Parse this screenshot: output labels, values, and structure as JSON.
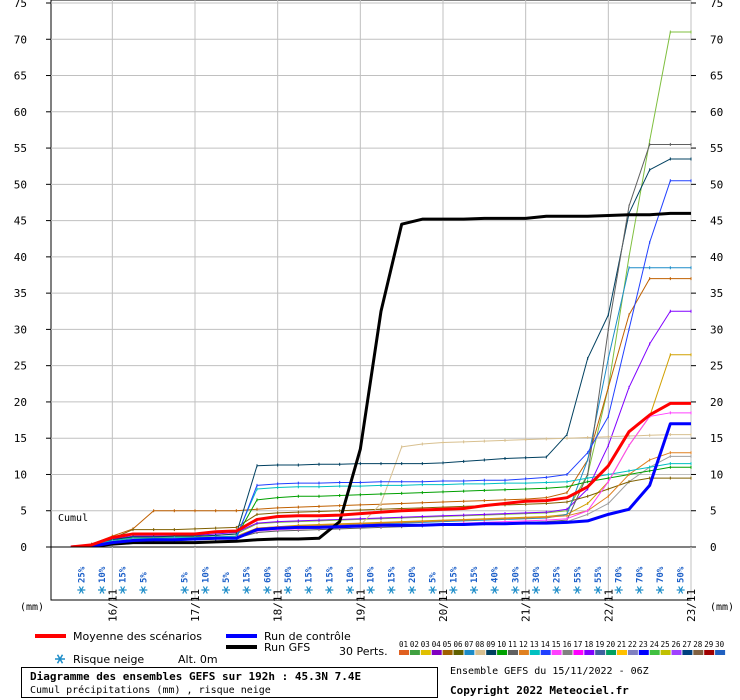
{
  "chart_data": {
    "type": "line",
    "title": "Diagramme des ensembles GEFS sur 192h : 45.3N 7.4E",
    "subtitle": "Cumul précipitations (mm) , risque neige",
    "source": "Ensemble GEFS du 15/11/2022 - 06Z",
    "copyright": "Copyright 2022 Meteociel.fr",
    "y_unit_left": "(mm)",
    "y_unit_right": "(mm)",
    "cumul_label": "Cumul",
    "ylim": [
      0,
      75
    ],
    "y_ticks": [
      0,
      5,
      10,
      15,
      20,
      25,
      30,
      35,
      40,
      45,
      50,
      55,
      60,
      65,
      70,
      75
    ],
    "x_day_labels": [
      "16/11",
      "17/11",
      "18/11",
      "19/11",
      "20/11",
      "21/11",
      "22/11",
      "23/11"
    ],
    "x": [
      0,
      0.25,
      0.5,
      0.75,
      1,
      1.25,
      1.5,
      1.75,
      2,
      2.25,
      2.5,
      2.75,
      3,
      3.25,
      3.5,
      3.75,
      4,
      4.25,
      4.5,
      4.75,
      5,
      5.25,
      5.5,
      5.75,
      6,
      6.25,
      6.5,
      6.75,
      7,
      7.25,
      7.5
    ],
    "snow_risk": [
      "25%",
      "10%",
      "15%",
      "5%",
      "",
      "5%",
      "10%",
      "5%",
      "15%",
      "60%",
      "50%",
      "15%",
      "15%",
      "10%",
      "10%",
      "15%",
      "20%",
      "5%",
      "15%",
      "15%",
      "40%",
      "30%",
      "30%",
      "25%",
      "55%",
      "55%",
      "70%",
      "70%",
      "70%",
      "50%"
    ],
    "series": [
      {
        "name": "Moyenne des scénarios",
        "color": "#ff0000",
        "width": 3,
        "values": [
          0,
          0.3,
          1.3,
          1.8,
          1.8,
          1.8,
          1.8,
          2.1,
          2.2,
          3.8,
          4.2,
          4.3,
          4.3,
          4.4,
          4.6,
          4.8,
          5,
          5.1,
          5.2,
          5.3,
          5.7,
          6,
          6.3,
          6.4,
          6.8,
          8.3,
          11.2,
          15.9,
          18.2,
          19.8,
          19.8
        ]
      },
      {
        "name": "Run de contrôle",
        "color": "#0000ff",
        "width": 3,
        "values": [
          0,
          0.1,
          0.6,
          0.9,
          1,
          1,
          1.1,
          1.2,
          1.2,
          2.4,
          2.6,
          2.7,
          2.7,
          2.8,
          2.9,
          3,
          3,
          3,
          3.1,
          3.1,
          3.2,
          3.2,
          3.3,
          3.3,
          3.4,
          3.6,
          4.5,
          5.2,
          8.5,
          17,
          17
        ]
      },
      {
        "name": "Run GFS",
        "color": "#000000",
        "width": 3,
        "values": [
          0,
          0.1,
          0.4,
          0.6,
          0.6,
          0.6,
          0.6,
          0.7,
          0.8,
          1,
          1.1,
          1.1,
          1.2,
          3.5,
          13.5,
          32.5,
          44.5,
          45.2,
          45.2,
          45.2,
          45.3,
          45.3,
          45.3,
          45.6,
          45.6,
          45.6,
          45.7,
          45.8,
          45.8,
          46,
          46
        ]
      },
      {
        "name": "01",
        "color": "#a0a0a0",
        "width": 1,
        "values": [
          0,
          0.2,
          0.6,
          0.9,
          1,
          1,
          1.1,
          1.2,
          1.3,
          2.2,
          2.4,
          2.5,
          2.6,
          2.7,
          2.8,
          2.9,
          3,
          3,
          3.1,
          3.1,
          3.2,
          3.3,
          3.3,
          3.4,
          3.5,
          4.5,
          6,
          9,
          11,
          12.5,
          12.5
        ]
      },
      {
        "name": "02",
        "color": "#7fbf3f",
        "width": 1,
        "values": [
          0,
          0.3,
          1,
          1.3,
          1.3,
          1.4,
          1.4,
          1.6,
          1.8,
          3.2,
          3.4,
          3.5,
          3.6,
          3.7,
          3.8,
          3.9,
          4,
          4.1,
          4.2,
          4.3,
          4.4,
          4.5,
          4.6,
          4.7,
          5,
          10,
          22,
          40,
          56,
          71,
          71
        ]
      },
      {
        "name": "03",
        "color": "#d0a000",
        "width": 1,
        "values": [
          0,
          0.2,
          0.8,
          1.1,
          1.2,
          1.2,
          1.3,
          1.4,
          1.5,
          2.6,
          2.8,
          3,
          3.1,
          3.2,
          3.3,
          3.4,
          3.5,
          3.6,
          3.7,
          3.8,
          3.9,
          4,
          4.1,
          4.2,
          4.5,
          6,
          9,
          14,
          18,
          26.5,
          26.5
        ]
      },
      {
        "name": "04",
        "color": "#8000ff",
        "width": 1,
        "values": [
          0,
          0.3,
          1.1,
          1.5,
          1.5,
          1.5,
          1.6,
          1.8,
          2,
          3.3,
          3.5,
          3.6,
          3.7,
          3.8,
          3.9,
          4,
          4.1,
          4.2,
          4.3,
          4.4,
          4.5,
          4.6,
          4.7,
          4.8,
          5.2,
          8,
          14,
          22,
          28,
          32.5,
          32.5
        ]
      },
      {
        "name": "05",
        "color": "#c06000",
        "width": 1,
        "values": [
          0,
          0.4,
          1.5,
          2.5,
          5,
          5,
          5,
          5,
          5,
          5.2,
          5.4,
          5.5,
          5.6,
          5.7,
          5.8,
          5.9,
          6,
          6.1,
          6.2,
          6.3,
          6.4,
          6.5,
          6.6,
          6.8,
          7.5,
          12,
          22,
          32,
          37,
          37,
          37
        ]
      },
      {
        "name": "06",
        "color": "#806000",
        "width": 1,
        "values": [
          0,
          0.3,
          1.2,
          2.4,
          2.4,
          2.4,
          2.5,
          2.6,
          2.7,
          4.5,
          4.7,
          4.8,
          4.9,
          5,
          5.1,
          5.2,
          5.3,
          5.4,
          5.5,
          5.6,
          5.7,
          5.8,
          5.9,
          6,
          6.2,
          7,
          8,
          9,
          9.5,
          9.5,
          9.5
        ]
      },
      {
        "name": "07",
        "color": "#1c8cc8",
        "width": 1,
        "values": [
          0,
          0.2,
          0.7,
          1,
          1,
          1.1,
          1.1,
          1.2,
          1.3,
          2.5,
          2.7,
          2.8,
          2.9,
          3,
          3.1,
          3.2,
          3.3,
          3.4,
          3.5,
          3.6,
          3.7,
          3.8,
          3.9,
          4,
          4.5,
          12,
          26,
          38.5,
          38.5,
          38.5,
          38.5
        ]
      },
      {
        "name": "08",
        "color": "#d8c090",
        "width": 1,
        "values": [
          0,
          0.2,
          0.8,
          1.1,
          1.2,
          1.2,
          1.3,
          1.4,
          1.5,
          2.4,
          2.6,
          2.7,
          2.8,
          2.9,
          3,
          6,
          13.8,
          14.2,
          14.4,
          14.5,
          14.6,
          14.7,
          14.8,
          14.9,
          15,
          15.1,
          15.2,
          15.3,
          15.4,
          15.5,
          15.5
        ]
      },
      {
        "name": "09",
        "color": "#004060",
        "width": 1,
        "values": [
          0,
          0.3,
          1,
          1.4,
          1.4,
          1.5,
          1.5,
          1.6,
          1.8,
          11.2,
          11.3,
          11.3,
          11.4,
          11.4,
          11.5,
          11.5,
          11.5,
          11.5,
          11.6,
          11.8,
          12,
          12.2,
          12.3,
          12.4,
          15.5,
          26,
          32,
          46,
          52,
          53.5,
          53.5
        ]
      },
      {
        "name": "10",
        "color": "#00a000",
        "width": 1,
        "values": [
          0,
          0.2,
          0.7,
          1,
          1,
          1.1,
          1.1,
          1.3,
          1.4,
          6.5,
          6.8,
          7,
          7,
          7.1,
          7.2,
          7.3,
          7.4,
          7.5,
          7.6,
          7.7,
          7.8,
          7.9,
          8,
          8.1,
          8.3,
          9,
          9.5,
          10,
          10.5,
          11,
          11
        ]
      },
      {
        "name": "11",
        "color": "#606060",
        "width": 1,
        "values": [
          0,
          0.2,
          0.6,
          0.9,
          0.9,
          1,
          1,
          1.1,
          1.2,
          2,
          2.2,
          2.3,
          2.4,
          2.5,
          2.6,
          2.7,
          2.8,
          2.9,
          3,
          3.1,
          3.2,
          3.3,
          3.4,
          3.5,
          3.7,
          10,
          30,
          47,
          55.5,
          55.5,
          55.5
        ]
      },
      {
        "name": "12",
        "color": "#e08020",
        "width": 1,
        "values": [
          0,
          0.2,
          0.7,
          1,
          1.1,
          1.1,
          1.2,
          1.3,
          1.4,
          2.6,
          2.8,
          2.9,
          3,
          3.1,
          3.2,
          3.3,
          3.4,
          3.5,
          3.6,
          3.7,
          3.8,
          3.9,
          4,
          4.1,
          4.3,
          5,
          7,
          10,
          12,
          13,
          13
        ]
      },
      {
        "name": "13",
        "color": "#00c0c0",
        "width": 1,
        "values": [
          0,
          0.3,
          0.9,
          1.2,
          1.2,
          1.3,
          1.3,
          1.4,
          1.5,
          8,
          8.2,
          8.3,
          8.3,
          8.4,
          8.4,
          8.5,
          8.5,
          8.6,
          8.6,
          8.7,
          8.7,
          8.8,
          8.8,
          8.9,
          9,
          9.5,
          10,
          10.5,
          11,
          11.5,
          11.5
        ]
      },
      {
        "name": "14",
        "color": "#2040ff",
        "width": 1,
        "values": [
          0,
          0.2,
          0.6,
          0.9,
          0.9,
          0.9,
          1,
          1.1,
          1.2,
          8.5,
          8.7,
          8.8,
          8.8,
          8.9,
          8.9,
          9,
          9,
          9,
          9.1,
          9.1,
          9.2,
          9.2,
          9.4,
          9.6,
          10,
          13,
          18,
          30,
          42,
          50.5,
          50.5
        ]
      },
      {
        "name": "15",
        "color": "#ff40ff",
        "width": 1,
        "values": [
          0,
          0.2,
          0.7,
          1,
          1,
          1.1,
          1.1,
          1.2,
          1.3,
          2.2,
          2.4,
          2.5,
          2.6,
          2.7,
          2.8,
          2.9,
          3,
          3.1,
          3.2,
          3.3,
          3.4,
          3.5,
          3.6,
          3.7,
          3.9,
          5,
          9,
          14,
          18,
          18.5,
          18.5
        ]
      }
    ]
  },
  "legend": {
    "mean_label": "Moyenne des scénarios",
    "control_label": "Run de contrôle",
    "gfs_label": "Run GFS",
    "snow_label": "Risque neige",
    "alt_label": "Alt. 0m",
    "perts_label": "30 Perts.",
    "pert_ids": [
      "01",
      "02",
      "03",
      "04",
      "05",
      "06",
      "07",
      "08",
      "09",
      "10",
      "11",
      "12",
      "13",
      "14",
      "15",
      "16",
      "17",
      "18",
      "19",
      "20",
      "21",
      "22",
      "23",
      "24",
      "25",
      "26",
      "27",
      "28",
      "29",
      "30"
    ],
    "pert_colors": [
      "#e06020",
      "#40a040",
      "#e0c000",
      "#8000c0",
      "#a06000",
      "#606000",
      "#1c8cc8",
      "#d8c090",
      "#004060",
      "#00a000",
      "#606060",
      "#e08020",
      "#00c0c0",
      "#2040ff",
      "#ff40ff",
      "#808080",
      "#ff00ff",
      "#8000ff",
      "#4060a0",
      "#00a060",
      "#ffc000",
      "#8080c0",
      "#0000ff",
      "#40c040",
      "#c0c000",
      "#a040ff",
      "#004080",
      "#806040",
      "#a00000",
      "#2060c0"
    ]
  }
}
